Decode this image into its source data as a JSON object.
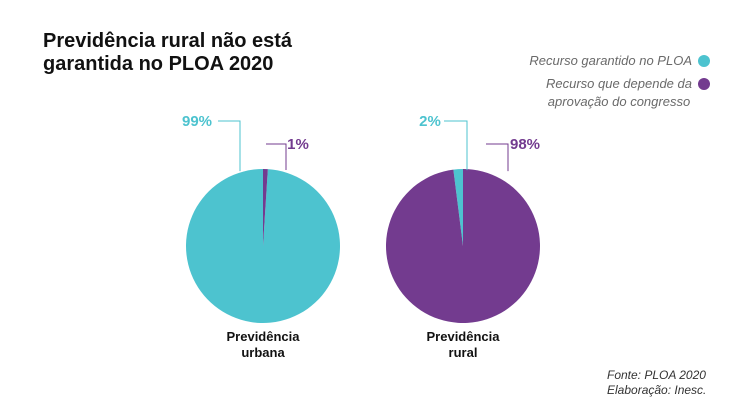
{
  "title": {
    "line1": "Previdência rural não está",
    "line2": "garantida no PLOA 2020"
  },
  "legend": {
    "items": [
      {
        "lines": [
          "Recurso garantido no PLOA"
        ],
        "color": "#4DC3CF"
      },
      {
        "lines": [
          "Recurso que depende da",
          "aprovação do congresso"
        ],
        "color": "#733B8F"
      }
    ]
  },
  "chart_data": {
    "type": "pie",
    "charts": [
      {
        "label_lines": [
          "Previdência",
          "urbana"
        ],
        "slices": [
          {
            "name": "Recurso garantido no PLOA",
            "value": 99,
            "label": "99%",
            "color": "#4DC3CF"
          },
          {
            "name": "Recurso que depende da aprovação do congresso",
            "value": 1,
            "label": "1%",
            "color": "#733B8F"
          }
        ]
      },
      {
        "label_lines": [
          "Previdência",
          "rural"
        ],
        "slices": [
          {
            "name": "Recurso garantido no PLOA",
            "value": 2,
            "label": "2%",
            "color": "#4DC3CF"
          },
          {
            "name": "Recurso que depende da aprovação do congresso",
            "value": 98,
            "label": "98%",
            "color": "#733B8F"
          }
        ]
      }
    ]
  },
  "source": {
    "line1": "Fonte: PLOA  2020",
    "line2": "Elaboração: Inesc."
  }
}
